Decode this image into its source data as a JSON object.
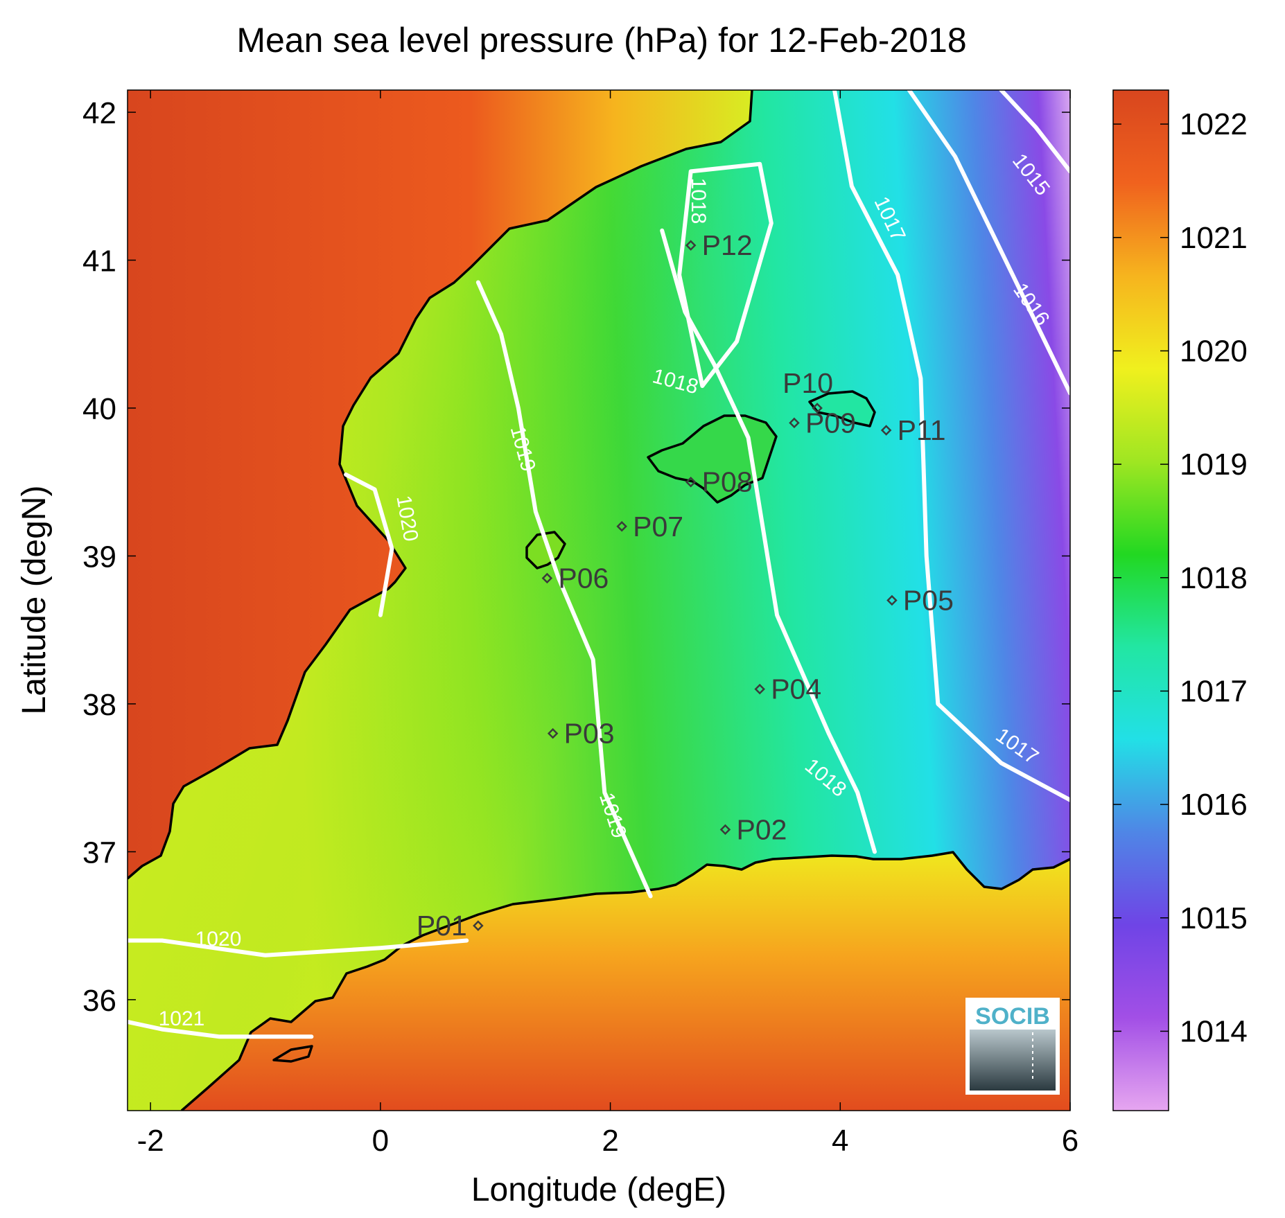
{
  "title": "Mean sea level pressure (hPa) for 12-Feb-2018",
  "xlabel": "Longitude (degE)",
  "ylabel": "Latitude (degN)",
  "x_ticks": [
    "-2",
    "0",
    "2",
    "4",
    "6"
  ],
  "y_ticks": [
    "36",
    "37",
    "38",
    "39",
    "40",
    "41",
    "42"
  ],
  "colorbar": {
    "ticks": [
      "1014",
      "1015",
      "1016",
      "1017",
      "1018",
      "1019",
      "1020",
      "1021",
      "1022"
    ],
    "colors": [
      "#e6a6f0",
      "#a24fe6",
      "#6f44e6",
      "#4f86e6",
      "#22e0e6",
      "#22e6a2",
      "#22d822",
      "#9fe622",
      "#f0f01e",
      "#f6b41e",
      "#f0621e",
      "#d8461e"
    ]
  },
  "contour_labels": [
    "1015",
    "1016",
    "1017",
    "1017",
    "1018",
    "1018",
    "1018",
    "1019",
    "1019",
    "1020",
    "1020",
    "1021"
  ],
  "logo_text": "SOCIB",
  "chart_data": {
    "type": "heatmap",
    "variable": "Mean sea level pressure (hPa)",
    "date": "12-Feb-2018",
    "xlim": [
      -2.2,
      6.0
    ],
    "ylim": [
      35.25,
      42.15
    ],
    "clim": [
      1013.3,
      1022.3
    ],
    "stations": [
      {
        "id": "P01",
        "lon": 0.85,
        "lat": 36.5
      },
      {
        "id": "P02",
        "lon": 3.0,
        "lat": 37.15
      },
      {
        "id": "P03",
        "lon": 1.5,
        "lat": 37.8
      },
      {
        "id": "P04",
        "lon": 3.3,
        "lat": 38.1
      },
      {
        "id": "P05",
        "lon": 4.45,
        "lat": 38.7
      },
      {
        "id": "P06",
        "lon": 1.45,
        "lat": 38.85
      },
      {
        "id": "P07",
        "lon": 2.1,
        "lat": 39.2
      },
      {
        "id": "P08",
        "lon": 2.7,
        "lat": 39.5
      },
      {
        "id": "P09",
        "lon": 3.6,
        "lat": 39.9
      },
      {
        "id": "P10",
        "lon": 3.8,
        "lat": 40.0
      },
      {
        "id": "P11",
        "lon": 4.4,
        "lat": 39.85
      },
      {
        "id": "P12",
        "lon": 2.7,
        "lat": 41.1
      }
    ],
    "contours": [
      {
        "level": 1015,
        "lon": [
          5.4,
          5.7,
          6.0
        ],
        "lat": [
          42.15,
          41.9,
          41.6
        ]
      },
      {
        "level": 1016,
        "lon": [
          4.6,
          5.0,
          5.5,
          6.0
        ],
        "lat": [
          42.15,
          41.7,
          40.9,
          40.1
        ]
      },
      {
        "level": 1017,
        "lon": [
          3.95,
          4.1,
          4.5,
          4.7,
          4.75,
          4.85,
          5.4,
          6.0
        ],
        "lat": [
          42.15,
          41.5,
          40.9,
          40.2,
          39.0,
          38.0,
          37.6,
          37.35
        ]
      },
      {
        "level": 1018,
        "lon": [
          2.45,
          2.65,
          2.9,
          3.2,
          3.45,
          3.9,
          4.15,
          4.3
        ],
        "lat": [
          41.2,
          40.65,
          40.3,
          39.8,
          38.6,
          37.8,
          37.4,
          37.0
        ]
      },
      {
        "level": 1018,
        "lon": [
          2.7,
          3.3,
          3.4,
          3.1,
          2.8,
          2.6,
          2.7
        ],
        "lat": [
          41.6,
          41.65,
          41.25,
          40.45,
          40.15,
          40.9,
          41.6
        ]
      },
      {
        "level": 1019,
        "lon": [
          0.85,
          1.05,
          1.2,
          1.35,
          1.55,
          1.85,
          1.95,
          2.35
        ],
        "lat": [
          40.85,
          40.5,
          40.0,
          39.3,
          38.85,
          38.3,
          37.4,
          36.7
        ]
      },
      {
        "level": 1020,
        "lon": [
          -0.3,
          -0.05,
          0.1,
          0.0
        ],
        "lat": [
          39.55,
          39.45,
          39.05,
          38.6
        ]
      },
      {
        "level": 1020,
        "lon": [
          -2.2,
          -1.9,
          -1.0,
          0.0,
          0.75
        ],
        "lat": [
          36.4,
          36.4,
          36.3,
          36.35,
          36.4
        ]
      },
      {
        "level": 1021,
        "lon": [
          -2.2,
          -1.9,
          -1.4,
          -0.6
        ],
        "lat": [
          35.85,
          35.8,
          35.75,
          35.75
        ]
      }
    ]
  }
}
